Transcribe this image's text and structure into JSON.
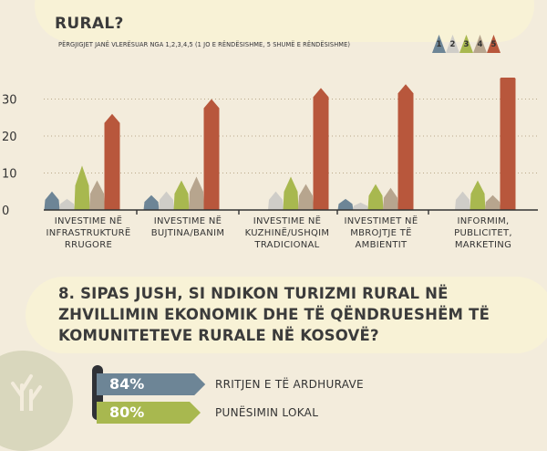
{
  "previous_question": {
    "title_line_visible": "RURAL?"
  },
  "scale_note": "PËRGJIGJET JANË VLERËSUAR NGA 1,2,3,4,5 (1 JO E RËNDËSISHME, 5 SHUMË E RËNDËSISHME)",
  "legend": [
    {
      "label": "1",
      "color": "#6d8596"
    },
    {
      "label": "2",
      "color": "#cfcdc8"
    },
    {
      "label": "3",
      "color": "#a8b84f"
    },
    {
      "label": "4",
      "color": "#b7a58e"
    },
    {
      "label": "5",
      "color": "#b8573c"
    }
  ],
  "chart_data": {
    "type": "bar",
    "categories": [
      [
        "INVESTIME NË",
        "INFRASTRUKTURË",
        "RRUGORE"
      ],
      [
        "INVESTIME NË",
        "BUJTINA/BANIM"
      ],
      [
        "INVESTIME NË",
        "KUZHINË/USHQIM",
        "TRADICIONAL"
      ],
      [
        "INVESTIMET NË",
        "MBROJTJE TË",
        "AMBIENTIT"
      ],
      [
        "INFORMIM,",
        "PUBLICITET,",
        "MARKETING"
      ]
    ],
    "series": [
      {
        "name": "1",
        "color": "#6d8596",
        "values": [
          5,
          4,
          0,
          3,
          0
        ]
      },
      {
        "name": "2",
        "color": "#cfcdc8",
        "values": [
          3,
          5,
          5,
          2,
          5
        ]
      },
      {
        "name": "3",
        "color": "#a8b84f",
        "values": [
          12,
          8,
          9,
          7,
          8
        ]
      },
      {
        "name": "4",
        "color": "#b7a58e",
        "values": [
          8,
          9,
          7,
          6,
          4
        ]
      },
      {
        "name": "5",
        "color": "#b8573c",
        "values": [
          26,
          30,
          33,
          34,
          38
        ]
      }
    ],
    "ylim": [
      0,
      38
    ],
    "yticks": [
      "0",
      "10",
      "20",
      "30"
    ],
    "grid": true
  },
  "question8": {
    "title": "8. SIPAS JUSH, SI NDIKON TURIZMI RURAL NË ZHVILLIMIN EKONOMIK DHE TË QËNDRUESHËM TË KOMUNITETEVE RURALE NË KOSOVË?",
    "items": [
      {
        "percent_label": "84%",
        "value": 84,
        "label": "RRITJEN E TË ARDHURAVE",
        "color": "#6d8596"
      },
      {
        "percent_label": "80%",
        "value": 80,
        "label": "PUNËSIMIN LOKAL",
        "color": "#a8b84f"
      }
    ]
  }
}
